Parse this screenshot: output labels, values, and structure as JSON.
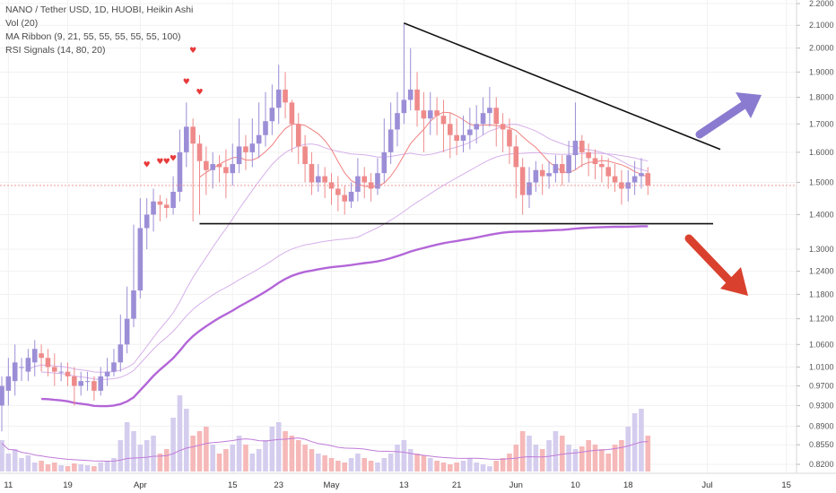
{
  "legend": {
    "title": "NANO / Tether USD, 1D, HUOBI, Heikin Ashi",
    "vol": "Vol (20)",
    "ma_ribbon": "MA Ribbon (9, 21, 55, 55, 55, 55, 55, 100)",
    "rsi": "RSI Signals (14, 80, 20)"
  },
  "colors": {
    "bull": "#9c8ed6",
    "bear": "#ef8a8a",
    "vol_bull": "#d5cdee",
    "vol_bear": "#f6b8b8",
    "ma_thick": "#b366d8",
    "ma_thin": "#d6b0ea",
    "ma_red": "#f08080",
    "trendline": "#111111",
    "arrow_up": "#8a7bd0",
    "arrow_down": "#d9412e",
    "signal": "#e83a3a",
    "price_line": "#ef8a8a"
  },
  "chart_data": {
    "type": "candlestick",
    "x_ticks": [
      "11",
      "19",
      "Apr",
      "15",
      "23",
      "May",
      "13",
      "21",
      "Jun",
      "10",
      "18",
      "Jul",
      "15"
    ],
    "y_ticks": [
      "0.8200",
      "0.8550",
      "0.8900",
      "0.9300",
      "0.9700",
      "1.0100",
      "1.0600",
      "1.1200",
      "1.1800",
      "1.2400",
      "1.3000",
      "1.4000",
      "1.5000",
      "1.6000",
      "1.7000",
      "1.8000",
      "1.9000",
      "2.0000",
      "2.1000",
      "2.2000"
    ],
    "y_scale": "log",
    "candles": [
      [
        0.93,
        0.97,
        0.88,
        0.99
      ],
      [
        0.96,
        0.99,
        0.93,
        1.03
      ],
      [
        0.98,
        1.02,
        0.95,
        1.06
      ],
      [
        1.01,
        1.01,
        0.98,
        1.03
      ],
      [
        1.0,
        1.03,
        0.98,
        1.05
      ],
      [
        1.02,
        1.05,
        0.99,
        1.07
      ],
      [
        1.04,
        1.03,
        1.0,
        1.06
      ],
      [
        1.03,
        1.01,
        0.99,
        1.05
      ],
      [
        1.01,
        1.0,
        0.97,
        1.04
      ],
      [
        1.0,
        1.0,
        0.98,
        1.02
      ],
      [
        1.0,
        0.99,
        0.97,
        1.02
      ],
      [
        0.99,
        0.97,
        0.93,
        1.01
      ],
      [
        0.97,
        0.98,
        0.95,
        1.0
      ],
      [
        0.98,
        0.98,
        0.96,
        1.0
      ],
      [
        0.98,
        0.96,
        0.94,
        0.99
      ],
      [
        0.96,
        0.99,
        0.95,
        1.01
      ],
      [
        0.99,
        1.0,
        0.97,
        1.03
      ],
      [
        1.0,
        1.02,
        0.99,
        1.05
      ],
      [
        1.02,
        1.06,
        1.0,
        1.13
      ],
      [
        1.06,
        1.12,
        1.04,
        1.2
      ],
      [
        1.12,
        1.19,
        1.1,
        1.37
      ],
      [
        1.19,
        1.36,
        1.17,
        1.45
      ],
      [
        1.36,
        1.4,
        1.3,
        1.45
      ],
      [
        1.4,
        1.44,
        1.35,
        1.48
      ],
      [
        1.44,
        1.43,
        1.38,
        1.46
      ],
      [
        1.43,
        1.42,
        1.39,
        1.45
      ],
      [
        1.42,
        1.47,
        1.4,
        1.52
      ],
      [
        1.47,
        1.6,
        1.44,
        1.68
      ],
      [
        1.6,
        1.69,
        1.55,
        1.78
      ],
      [
        1.69,
        1.63,
        1.38,
        1.72
      ],
      [
        1.63,
        1.57,
        1.4,
        1.66
      ],
      [
        1.57,
        1.54,
        1.46,
        1.62
      ],
      [
        1.54,
        1.56,
        1.48,
        1.6
      ],
      [
        1.56,
        1.55,
        1.5,
        1.59
      ],
      [
        1.55,
        1.53,
        1.45,
        1.61
      ],
      [
        1.53,
        1.56,
        1.49,
        1.63
      ],
      [
        1.56,
        1.62,
        1.53,
        1.72
      ],
      [
        1.62,
        1.6,
        1.54,
        1.66
      ],
      [
        1.6,
        1.63,
        1.55,
        1.72
      ],
      [
        1.63,
        1.66,
        1.58,
        1.78
      ],
      [
        1.66,
        1.71,
        1.62,
        1.82
      ],
      [
        1.71,
        1.76,
        1.66,
        1.85
      ],
      [
        1.76,
        1.83,
        1.7,
        1.93
      ],
      [
        1.83,
        1.78,
        1.72,
        1.9
      ],
      [
        1.78,
        1.7,
        1.6,
        1.79
      ],
      [
        1.7,
        1.62,
        1.56,
        1.74
      ],
      [
        1.62,
        1.56,
        1.5,
        1.66
      ],
      [
        1.56,
        1.5,
        1.46,
        1.6
      ],
      [
        1.5,
        1.52,
        1.47,
        1.56
      ],
      [
        1.52,
        1.5,
        1.45,
        1.55
      ],
      [
        1.5,
        1.48,
        1.43,
        1.53
      ],
      [
        1.48,
        1.46,
        1.41,
        1.52
      ],
      [
        1.46,
        1.44,
        1.4,
        1.49
      ],
      [
        1.44,
        1.47,
        1.42,
        1.5
      ],
      [
        1.47,
        1.52,
        1.44,
        1.58
      ],
      [
        1.52,
        1.5,
        1.45,
        1.55
      ],
      [
        1.5,
        1.48,
        1.44,
        1.53
      ],
      [
        1.48,
        1.53,
        1.46,
        1.58
      ],
      [
        1.53,
        1.6,
        1.5,
        1.72
      ],
      [
        1.6,
        1.68,
        1.56,
        1.78
      ],
      [
        1.68,
        1.74,
        1.62,
        1.82
      ],
      [
        1.74,
        1.79,
        1.7,
        2.11
      ],
      [
        1.79,
        1.83,
        1.75,
        2.0
      ],
      [
        1.83,
        1.75,
        1.69,
        1.9
      ],
      [
        1.75,
        1.72,
        1.6,
        1.82
      ],
      [
        1.72,
        1.75,
        1.66,
        1.82
      ],
      [
        1.75,
        1.73,
        1.66,
        1.8
      ],
      [
        1.73,
        1.7,
        1.6,
        1.79
      ],
      [
        1.7,
        1.66,
        1.58,
        1.74
      ],
      [
        1.66,
        1.64,
        1.59,
        1.72
      ],
      [
        1.64,
        1.66,
        1.6,
        1.73
      ],
      [
        1.66,
        1.68,
        1.61,
        1.76
      ],
      [
        1.68,
        1.7,
        1.63,
        1.77
      ],
      [
        1.7,
        1.74,
        1.66,
        1.8
      ],
      [
        1.74,
        1.76,
        1.69,
        1.84
      ],
      [
        1.76,
        1.7,
        1.62,
        1.8
      ],
      [
        1.7,
        1.68,
        1.6,
        1.74
      ],
      [
        1.68,
        1.62,
        1.56,
        1.72
      ],
      [
        1.62,
        1.55,
        1.45,
        1.66
      ],
      [
        1.55,
        1.46,
        1.4,
        1.58
      ],
      [
        1.46,
        1.5,
        1.42,
        1.55
      ],
      [
        1.5,
        1.54,
        1.47,
        1.57
      ],
      [
        1.54,
        1.52,
        1.46,
        1.56
      ],
      [
        1.52,
        1.53,
        1.48,
        1.57
      ],
      [
        1.53,
        1.56,
        1.5,
        1.59
      ],
      [
        1.56,
        1.53,
        1.49,
        1.59
      ],
      [
        1.53,
        1.59,
        1.5,
        1.64
      ],
      [
        1.59,
        1.64,
        1.54,
        1.78
      ],
      [
        1.64,
        1.6,
        1.55,
        1.66
      ],
      [
        1.6,
        1.58,
        1.52,
        1.63
      ],
      [
        1.58,
        1.56,
        1.51,
        1.61
      ],
      [
        1.56,
        1.55,
        1.5,
        1.59
      ],
      [
        1.55,
        1.52,
        1.48,
        1.58
      ],
      [
        1.52,
        1.5,
        1.47,
        1.56
      ],
      [
        1.5,
        1.48,
        1.43,
        1.54
      ],
      [
        1.48,
        1.5,
        1.44,
        1.54
      ],
      [
        1.5,
        1.52,
        1.46,
        1.57
      ],
      [
        1.52,
        1.53,
        1.48,
        1.58
      ],
      [
        1.53,
        1.49,
        1.46,
        1.55
      ]
    ],
    "volume": [
      0.35,
      0.2,
      0.25,
      0.15,
      0.18,
      0.1,
      0.12,
      0.08,
      0.1,
      0.07,
      0.06,
      0.09,
      0.08,
      0.07,
      0.06,
      0.1,
      0.12,
      0.15,
      0.35,
      0.55,
      0.45,
      0.3,
      0.35,
      0.4,
      0.2,
      0.25,
      0.6,
      0.85,
      0.7,
      0.4,
      0.45,
      0.5,
      0.3,
      0.2,
      0.25,
      0.3,
      0.4,
      0.3,
      0.2,
      0.25,
      0.35,
      0.5,
      0.55,
      0.45,
      0.4,
      0.35,
      0.3,
      0.25,
      0.2,
      0.18,
      0.15,
      0.12,
      0.1,
      0.15,
      0.2,
      0.15,
      0.12,
      0.1,
      0.15,
      0.2,
      0.3,
      0.35,
      0.25,
      0.2,
      0.18,
      0.15,
      0.12,
      0.1,
      0.08,
      0.1,
      0.12,
      0.15,
      0.1,
      0.08,
      0.06,
      0.12,
      0.15,
      0.2,
      0.3,
      0.45,
      0.4,
      0.3,
      0.25,
      0.35,
      0.45,
      0.4,
      0.3,
      0.25,
      0.28,
      0.35,
      0.3,
      0.25,
      0.2,
      0.3,
      0.35,
      0.5,
      0.65,
      0.7,
      0.4
    ]
  },
  "annotations": {
    "symbol": "RSI overbought signal"
  }
}
